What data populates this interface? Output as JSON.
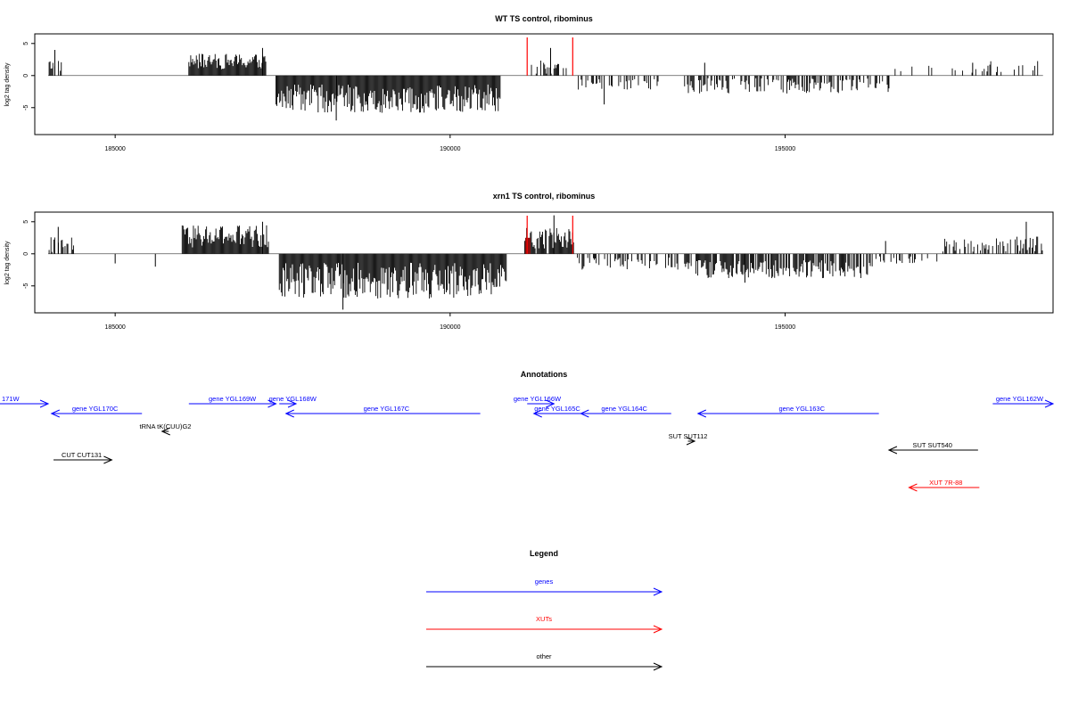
{
  "colors": {
    "gene": "#0000ff",
    "xut": "#ff0000",
    "other": "#000000",
    "bar": "#000000",
    "highlight": "#ff0000"
  },
  "x_domain": [
    183800,
    199000
  ],
  "chart_data": [
    {
      "type": "bar",
      "title": "WT TS control, ribominus",
      "ylabel": "log2 tag density",
      "ylim": [
        -9.2,
        6.5
      ],
      "y_ticks": [
        -5,
        0,
        5
      ],
      "x_ticks": [
        185000,
        190000,
        195000
      ],
      "x_tick_labels": [
        "185000",
        "190000",
        "195000"
      ],
      "highlight_lines_x": [
        191150,
        191830
      ],
      "segments": [
        {
          "x0": 184000,
          "x1": 184200,
          "sign": 1,
          "mean": 1.6,
          "amp": 1.0,
          "density": 0.6
        },
        {
          "x0": 186100,
          "x1": 187250,
          "sign": 1,
          "mean": 2.2,
          "amp": 1.2,
          "density": 1.0
        },
        {
          "x0": 187400,
          "x1": 190750,
          "sign": -1,
          "mean": 3.6,
          "amp": 2.2,
          "density": 1.0
        },
        {
          "x0": 191200,
          "x1": 191750,
          "sign": 1,
          "mean": 1.3,
          "amp": 1.2,
          "density": 0.5
        },
        {
          "x0": 191900,
          "x1": 193150,
          "sign": -1,
          "mean": 1.3,
          "amp": 0.9,
          "density": 0.35
        },
        {
          "x0": 193500,
          "x1": 196550,
          "sign": -1,
          "mean": 1.6,
          "amp": 1.2,
          "density": 0.45
        },
        {
          "x0": 196600,
          "x1": 198000,
          "sign": 1,
          "mean": 1.0,
          "amp": 0.6,
          "density": 0.08
        },
        {
          "x0": 198000,
          "x1": 198850,
          "sign": 1,
          "mean": 1.4,
          "amp": 0.9,
          "density": 0.25
        }
      ],
      "peaks": [
        [
          184100,
          4.0
        ],
        [
          187200,
          4.3
        ],
        [
          188300,
          -7.0
        ],
        [
          191500,
          4.3
        ],
        [
          192300,
          -4.5
        ],
        [
          193800,
          2.0
        ],
        [
          196550,
          -2.0
        ],
        [
          197800,
          2.0
        ]
      ]
    },
    {
      "type": "bar",
      "title": "xrn1 TS control, ribominus",
      "ylabel": "log2 tag density",
      "ylim": [
        -9.2,
        6.5
      ],
      "y_ticks": [
        -5,
        0,
        5
      ],
      "x_ticks": [
        185000,
        190000,
        195000
      ],
      "x_tick_labels": [
        "185000",
        "190000",
        "195000"
      ],
      "highlight_lines_x": [
        191150,
        191830
      ],
      "highlight_fill_range": [
        191120,
        191200
      ],
      "segments": [
        {
          "x0": 184000,
          "x1": 184400,
          "sign": 1,
          "mean": 1.6,
          "amp": 1.5,
          "density": 0.6
        },
        {
          "x0": 186000,
          "x1": 187300,
          "sign": 1,
          "mean": 2.7,
          "amp": 1.8,
          "density": 1.0
        },
        {
          "x0": 187450,
          "x1": 190850,
          "sign": -1,
          "mean": 4.2,
          "amp": 2.8,
          "density": 1.0
        },
        {
          "x0": 191100,
          "x1": 191850,
          "sign": 1,
          "mean": 2.3,
          "amp": 1.8,
          "density": 0.9
        },
        {
          "x0": 191900,
          "x1": 193400,
          "sign": -1,
          "mean": 1.5,
          "amp": 1.0,
          "density": 0.45
        },
        {
          "x0": 193500,
          "x1": 196300,
          "sign": -1,
          "mean": 2.4,
          "amp": 1.4,
          "density": 0.8
        },
        {
          "x0": 196300,
          "x1": 197300,
          "sign": -1,
          "mean": 1.0,
          "amp": 0.6,
          "density": 0.25
        },
        {
          "x0": 197300,
          "x1": 198900,
          "sign": 1,
          "mean": 1.5,
          "amp": 1.2,
          "density": 0.45
        }
      ],
      "peaks": [
        [
          184150,
          4.2
        ],
        [
          187200,
          5.0
        ],
        [
          188400,
          -8.7
        ],
        [
          191550,
          6.0
        ],
        [
          194400,
          -4.5
        ],
        [
          196500,
          2.0
        ],
        [
          198600,
          5.0
        ],
        [
          185000,
          -1.5
        ],
        [
          185600,
          -2.0
        ]
      ]
    }
  ],
  "annotations": {
    "title": "Annotations",
    "features": [
      {
        "label": "171W",
        "type": "gene",
        "dir": 1,
        "x0": 183150,
        "x1": 184000,
        "row": 0,
        "label_x": 183300
      },
      {
        "label": "gene YGL170C",
        "type": "gene",
        "dir": -1,
        "x0": 184050,
        "x1": 185400,
        "row": 1,
        "label_x": 184700
      },
      {
        "label": "gene YGL169W",
        "type": "gene",
        "dir": 1,
        "x0": 186100,
        "x1": 187400,
        "row": 0,
        "label_x": 186750
      },
      {
        "label": "gene YGL168W",
        "type": "gene",
        "dir": 1,
        "x0": 187450,
        "x1": 187700,
        "row": 0,
        "label_x": 187650
      },
      {
        "label": "gene YGL167C",
        "type": "gene",
        "dir": -1,
        "x0": 187550,
        "x1": 190450,
        "row": 1,
        "label_x": 189050
      },
      {
        "label": "gene YGL166W",
        "type": "gene",
        "dir": 1,
        "x0": 191150,
        "x1": 191550,
        "row": 0,
        "label_x": 191300
      },
      {
        "label": "gene YGL165C",
        "type": "gene",
        "dir": -1,
        "x0": 191250,
        "x1": 191950,
        "row": 1,
        "label_x": 191600
      },
      {
        "label": "gene YGL164C",
        "type": "gene",
        "dir": -1,
        "x0": 191950,
        "x1": 193300,
        "row": 1,
        "label_x": 192600
      },
      {
        "label": "gene YGL163C",
        "type": "gene",
        "dir": -1,
        "x0": 193700,
        "x1": 196400,
        "row": 1,
        "label_x": 195250
      },
      {
        "label": "gene YGL162W",
        "type": "gene",
        "dir": 1,
        "x0": 198100,
        "x1": 199000,
        "row": 0,
        "label_x": 198500
      },
      {
        "label": "tRNA tK(CUU)G2",
        "type": "other",
        "dir": -1,
        "x0": 185700,
        "x1": 185800,
        "row": 2,
        "label_x": 185750
      },
      {
        "label": "SUT SUT112",
        "type": "other",
        "dir": 1,
        "x0": 193550,
        "x1": 193650,
        "row": 3,
        "label_x": 193550
      },
      {
        "label": "CUT CUT131",
        "type": "other",
        "dir": 1,
        "x0": 184080,
        "x1": 184950,
        "row": 4,
        "label_x": 184500
      },
      {
        "label": "SUT SUT540",
        "type": "other",
        "dir": -1,
        "x0": 196550,
        "x1": 197880,
        "row": 5,
        "label_x": 197200
      },
      {
        "label": "XUT 7R-88",
        "type": "xut",
        "dir": -1,
        "x0": 196850,
        "x1": 197900,
        "row": 6,
        "label_x": 197400
      }
    ]
  },
  "legend": {
    "title": "Legend",
    "items": [
      {
        "label": "genes",
        "type": "gene"
      },
      {
        "label": "XUTs",
        "type": "xut"
      },
      {
        "label": "other",
        "type": "other"
      }
    ]
  }
}
